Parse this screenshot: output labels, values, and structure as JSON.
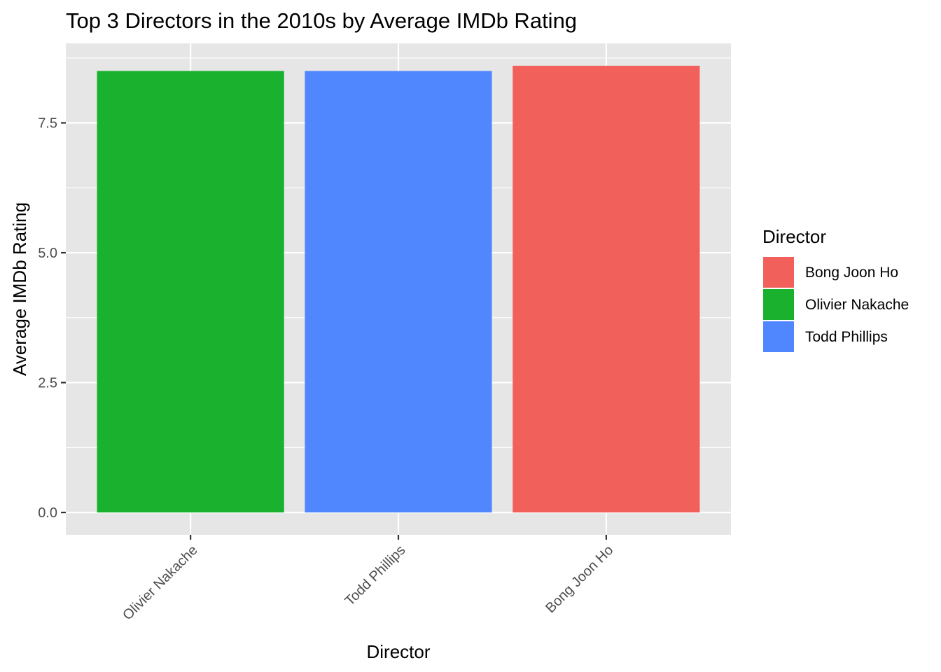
{
  "chart_data": {
    "type": "bar",
    "title": "Top 3 Directors in the 2010s by Average IMDb Rating",
    "xlabel": "Director",
    "ylabel": "Average IMDb Rating",
    "categories": [
      "Olivier Nakache",
      "Todd Phillips",
      "Bong Joon Ho"
    ],
    "values": [
      8.5,
      8.5,
      8.6
    ],
    "bar_colors": [
      "#19B12E",
      "#5087FF",
      "#F2605C"
    ],
    "ylim": [
      -0.43,
      9.03
    ],
    "yticks": [
      0.0,
      2.5,
      5.0,
      7.5
    ],
    "ytick_labels": [
      "0.0",
      "2.5",
      "5.0",
      "7.5"
    ],
    "grid": true,
    "panel_background": "#E6E6E6",
    "grid_color": "#FFFFFF",
    "legend": {
      "title": "Director",
      "position": "right",
      "entries": [
        {
          "label": "Bong Joon Ho",
          "color": "#F2605C"
        },
        {
          "label": "Olivier Nakache",
          "color": "#19B12E"
        },
        {
          "label": "Todd Phillips",
          "color": "#5087FF"
        }
      ]
    }
  }
}
